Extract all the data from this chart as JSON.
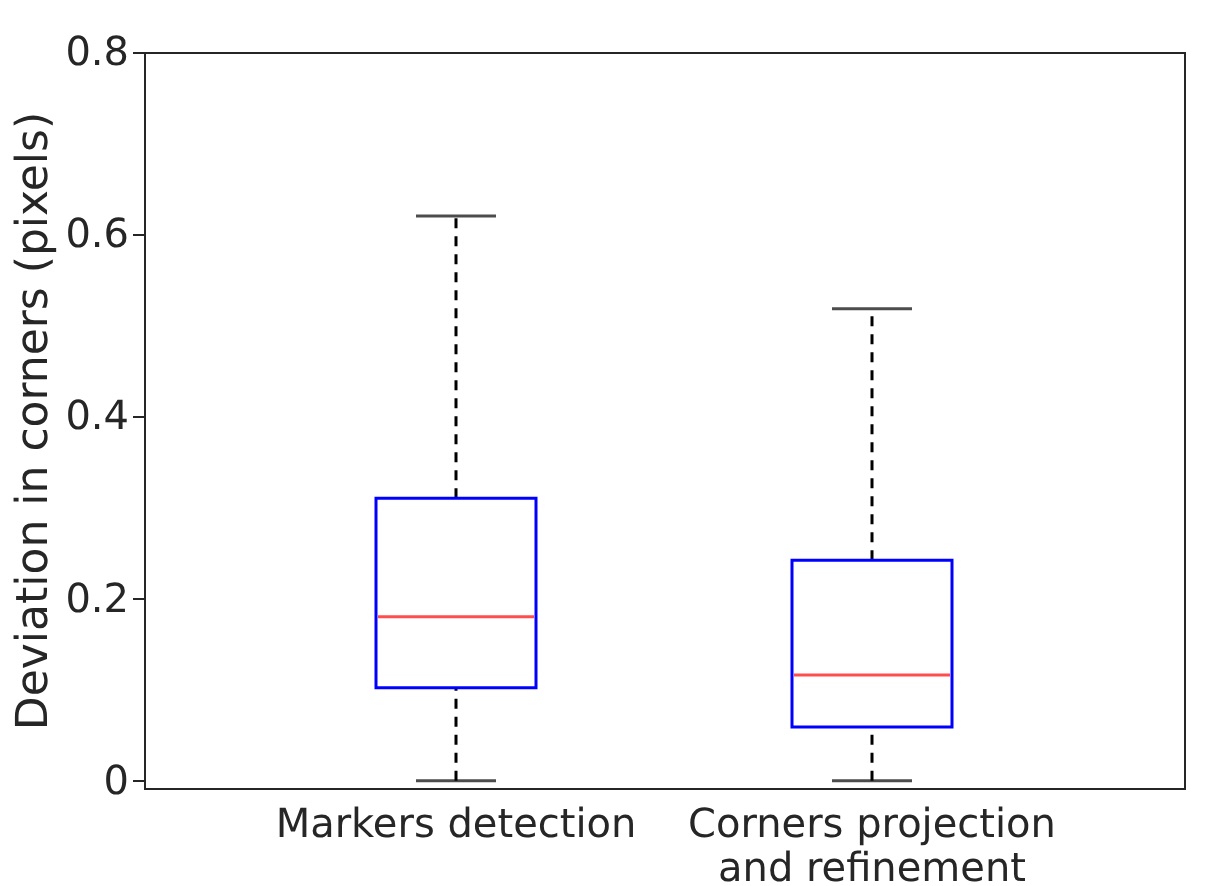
{
  "chart_data": {
    "type": "box",
    "ylabel": "Deviation in corners (pixels)",
    "categories": [
      "Markers detection",
      "Corners projection and refinement"
    ],
    "boxes": [
      {
        "low": 0,
        "q1": 0.102,
        "median": 0.18,
        "q3": 0.31,
        "high": 0.62
      },
      {
        "low": 0,
        "q1": 0.059,
        "median": 0.116,
        "q3": 0.242,
        "high": 0.518
      }
    ],
    "color": "#0000ff",
    "ylim": [
      -0.008,
      0.8
    ],
    "yticks": [
      0,
      0.2,
      0.4,
      0.6,
      0.8
    ],
    "grid": false
  }
}
